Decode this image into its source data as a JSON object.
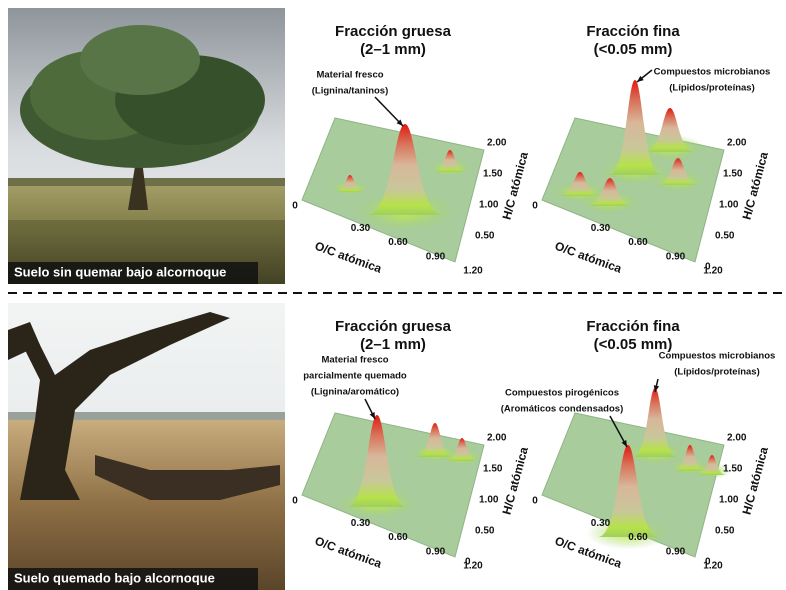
{
  "panels": [
    {
      "photo_caption": "Suelo sin quemar bajo alcornoque",
      "plots": [
        {
          "title": [
            "Fracción gruesa",
            "(2–1 mm)"
          ],
          "annotations": [
            {
              "lines": [
                "Material fresco",
                "(Lignina/taninos)"
              ]
            }
          ],
          "x_axis_label": "O/C atómica",
          "y_axis_label": "H/C atómica",
          "x_ticks": [
            "0",
            "0.30",
            "0.60",
            "0.90",
            "1.20"
          ],
          "y_ticks": [
            "0.50",
            "1.00",
            "1.50",
            "2.00"
          ]
        },
        {
          "title": [
            "Fracción fina",
            "(<0.05 mm)"
          ],
          "annotations": [
            {
              "lines": [
                "Compuestos microbianos",
                "(Lípidos/proteínas)"
              ]
            }
          ],
          "x_axis_label": "O/C atómica",
          "y_axis_label": "H/C atómica",
          "x_ticks": [
            "0",
            "0.30",
            "0.60",
            "0.90",
            "1.20"
          ],
          "y_ticks": [
            "0",
            "0.50",
            "1.00",
            "1.50",
            "2.00"
          ]
        }
      ]
    },
    {
      "photo_caption": "Suelo quemado bajo alcornoque",
      "plots": [
        {
          "title": [
            "Fracción gruesa",
            "(2–1 mm)"
          ],
          "annotations": [
            {
              "lines": [
                "Material fresco",
                "parcialmente quemado",
                "(Lignina/aromático)"
              ]
            }
          ],
          "x_axis_label": "O/C atómica",
          "y_axis_label": "H/C atómica",
          "x_ticks": [
            "0",
            "0.30",
            "0.60",
            "0.90",
            "1.20"
          ],
          "y_ticks": [
            "0",
            "0.50",
            "1.00",
            "1.50",
            "2.00"
          ]
        },
        {
          "title": [
            "Fracción fina",
            "(<0.05 mm)"
          ],
          "annotations": [
            {
              "lines": [
                "Compuestos microbianos",
                "(Lípidos/proteínas)"
              ]
            },
            {
              "lines": [
                "Compuestos pirogénicos",
                "(Aromáticos condensados)"
              ]
            }
          ],
          "x_axis_label": "O/C atómica",
          "y_axis_label": "H/C atómica",
          "x_ticks": [
            "0",
            "0.30",
            "0.60",
            "0.90",
            "1.20"
          ],
          "y_ticks": [
            "0",
            "0.50",
            "1.00",
            "1.50",
            "2.00"
          ]
        }
      ]
    }
  ]
}
